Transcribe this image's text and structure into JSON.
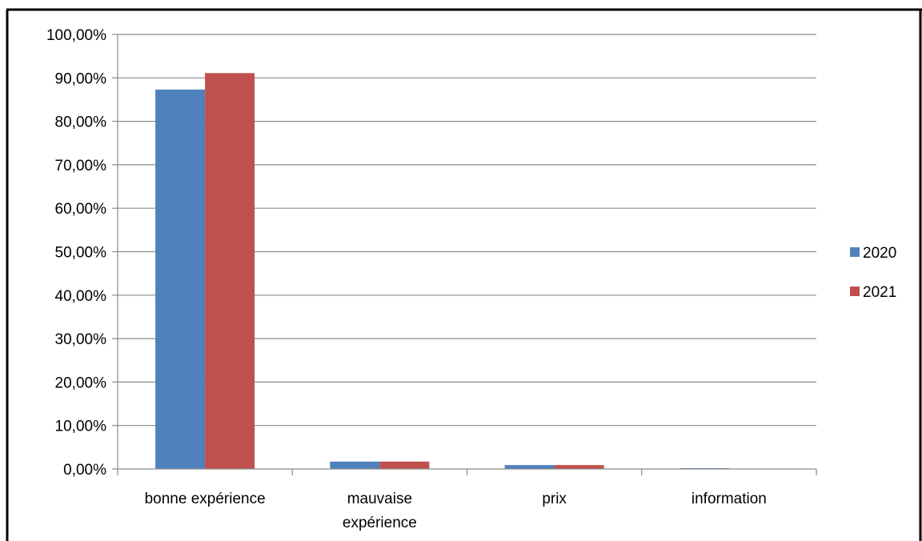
{
  "chart_data": {
    "type": "bar",
    "categories": [
      "bonne expérience",
      "mauvaise expérience",
      "prix",
      "information"
    ],
    "category_lines": [
      [
        "bonne expérience"
      ],
      [
        "mauvaise",
        "expérience"
      ],
      [
        "prix"
      ],
      [
        "information"
      ]
    ],
    "series": [
      {
        "name": "2020",
        "values": [
          87.3,
          1.7,
          0.9,
          0.2
        ],
        "color": "#4F81BD"
      },
      {
        "name": "2021",
        "values": [
          91.1,
          1.7,
          0.9,
          0.1
        ],
        "color": "#C0504D"
      }
    ],
    "ylim": [
      0,
      100
    ],
    "y_ticks": [
      0,
      10,
      20,
      30,
      40,
      50,
      60,
      70,
      80,
      90,
      100
    ],
    "y_tick_labels": [
      "0,00%",
      "10,00%",
      "20,00%",
      "30,00%",
      "40,00%",
      "50,00%",
      "60,00%",
      "70,00%",
      "80,00%",
      "90,00%",
      "100,00%"
    ],
    "grid": true,
    "legend_position": "right",
    "title": "",
    "xlabel": "",
    "ylabel": ""
  }
}
